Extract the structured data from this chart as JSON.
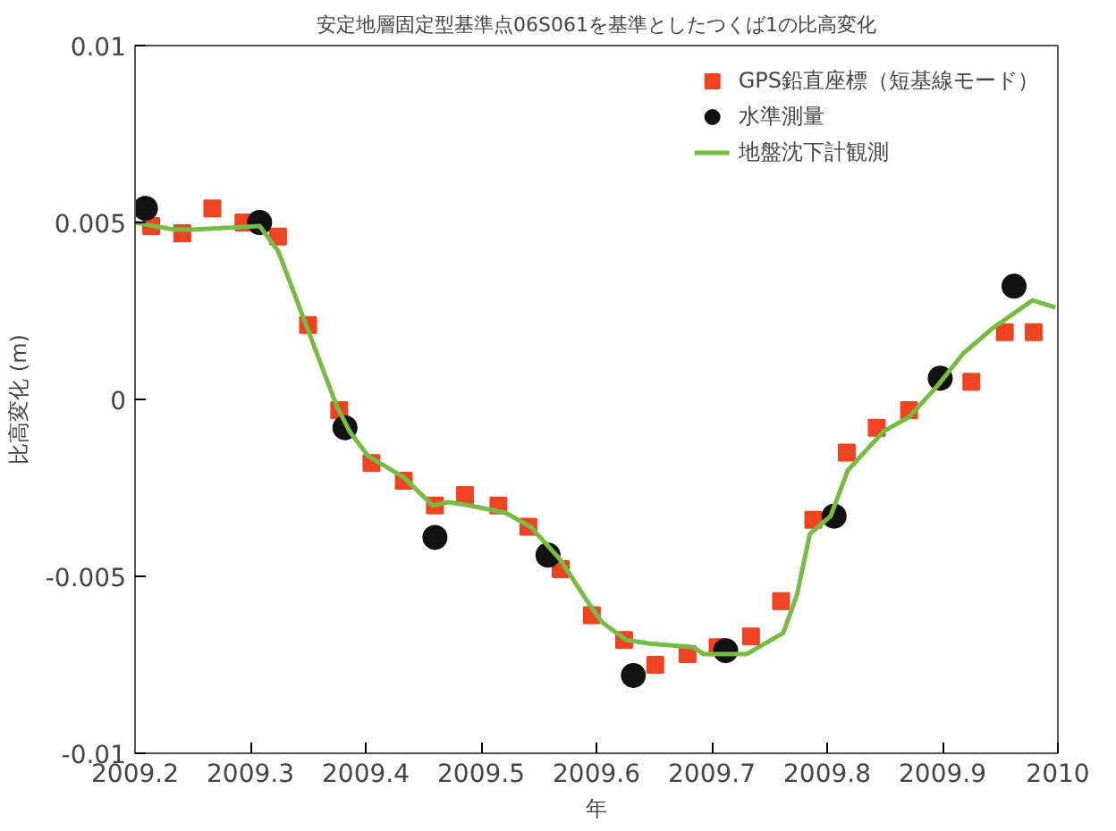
{
  "chart_data": {
    "type": "scatter",
    "title": "安定地層固定型基準点06S061を基準としたつくば1の比高変化",
    "xlabel": "年",
    "ylabel": "比高変化 (m)",
    "xlim": [
      2009.2,
      2010
    ],
    "xticks": [
      2009.2,
      2009.3,
      2009.4,
      2009.5,
      2009.6,
      2009.7,
      2009.8,
      2009.9,
      2010
    ],
    "ylim": [
      -0.01,
      0.01
    ],
    "yticks": [
      -0.01,
      -0.005,
      0,
      0.005,
      0.01
    ],
    "grid": false,
    "legend": "top right",
    "series": [
      {
        "name": "GPS鉛直座標（短基線モード）",
        "marker": "square",
        "color": "#ee4422",
        "x": [
          2009.214,
          2009.241,
          2009.267,
          2009.294,
          2009.324,
          2009.35,
          2009.377,
          2009.405,
          2009.433,
          2009.46,
          2009.486,
          2009.515,
          2009.541,
          2009.569,
          2009.596,
          2009.624,
          2009.651,
          2009.679,
          2009.705,
          2009.734,
          2009.76,
          2009.788,
          2009.817,
          2009.843,
          2009.871,
          2009.925,
          2009.954,
          2009.979
        ],
        "values": [
          0.0049,
          0.0047,
          0.0054,
          0.005,
          0.0046,
          0.0021,
          -0.0003,
          -0.0018,
          -0.0023,
          -0.003,
          -0.0027,
          -0.003,
          -0.0036,
          -0.0048,
          -0.0061,
          -0.0068,
          -0.0075,
          -0.0072,
          -0.007,
          -0.0067,
          -0.0057,
          -0.0034,
          -0.0015,
          -0.0008,
          -0.0003,
          0.0005,
          0.0019,
          0.0019
        ]
      },
      {
        "name": "水準測量",
        "marker": "circle",
        "color": "#111111",
        "x": [
          2009.209,
          2009.308,
          2009.382,
          2009.46,
          2009.558,
          2009.632,
          2009.712,
          2009.806,
          2009.898,
          2009.962
        ],
        "values": [
          0.0054,
          0.005,
          -0.0008,
          -0.0039,
          -0.0044,
          -0.0078,
          -0.0071,
          -0.0033,
          0.0006,
          0.0032
        ]
      },
      {
        "name": "地盤沈下計観測",
        "type": "line",
        "marker": "none",
        "line_style": "solid",
        "color": "#77bb44",
        "x": [
          2009.2,
          2009.234,
          2009.25,
          2009.308,
          2009.324,
          2009.375,
          2009.386,
          2009.402,
          2009.433,
          2009.458,
          2009.472,
          2009.49,
          2009.521,
          2009.543,
          2009.568,
          2009.594,
          2009.605,
          2009.626,
          2009.646,
          2009.684,
          2009.693,
          2009.73,
          2009.762,
          2009.774,
          2009.785,
          2009.803,
          2009.818,
          2009.849,
          2009.871,
          2009.896,
          2009.918,
          2009.943,
          2009.978,
          2009.998
        ],
        "values": [
          0.005,
          0.0048,
          0.0048,
          0.0049,
          0.0042,
          -0.0002,
          -0.0009,
          -0.0016,
          -0.0022,
          -0.003,
          -0.0029,
          -0.003,
          -0.0032,
          -0.0036,
          -0.0045,
          -0.0058,
          -0.0063,
          -0.0068,
          -0.0069,
          -0.007,
          -0.0072,
          -0.0072,
          -0.0066,
          -0.0055,
          -0.0038,
          -0.0033,
          -0.002,
          -0.0009,
          -0.0005,
          0.0004,
          0.0013,
          0.002,
          0.0028,
          0.0026
        ]
      }
    ]
  }
}
